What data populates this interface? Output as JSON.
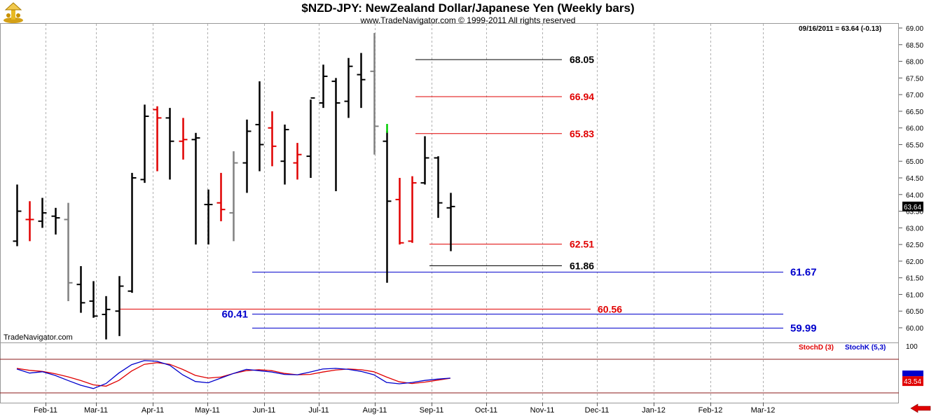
{
  "header": {
    "title": "$NZD-JPY:  NewZealand Dollar/Japanese Yen  (Weekly bars)",
    "subtitle": "www.TradeNavigator.com © 1999-2011 All rights reserved",
    "last_info": "09/16/2011 = 63.64 (-0.13)",
    "watermark": "TradeNavigator.com"
  },
  "colors": {
    "up": "#000000",
    "down": "#e00000",
    "gray": "#808080",
    "green": "#00cc00",
    "fib_black": "#000000",
    "fib_red": "#e00000",
    "fib_blue": "#0000cc",
    "stoch_d": "#e00000",
    "stoch_k": "#0000cc",
    "last_price_bg": "#000000",
    "stoch_last_bg": "#e00000"
  },
  "chart_data": [
    {
      "type": "ohlc",
      "title": "$NZD-JPY:  NewZealand Dollar/Japanese Yen  (Weekly bars)",
      "y_axis_side": "right",
      "ylim": [
        59.7,
        69.1
      ],
      "y_ticks": [
        "69.00",
        "68.50",
        "68.00",
        "67.50",
        "67.00",
        "66.50",
        "66.00",
        "65.50",
        "65.00",
        "64.50",
        "64.00",
        "63.50",
        "63.00",
        "62.50",
        "62.00",
        "61.50",
        "61.00",
        "60.50",
        "60.00"
      ],
      "x_ticks": [
        "Feb-11",
        "Mar-11",
        "Apr-11",
        "May-11",
        "Jun-11",
        "Jul-11",
        "Aug-11",
        "Sep-11",
        "Oct-11",
        "Nov-11",
        "Dec-11",
        "Jan-12",
        "Feb-12",
        "Mar-12"
      ],
      "last_price_label": "63.64",
      "bars": [
        {
          "date": "2011-01-21",
          "o": 62.6,
          "h": 64.3,
          "l": 62.45,
          "c": 63.5,
          "color": "black"
        },
        {
          "date": "2011-01-28",
          "o": 63.25,
          "h": 63.8,
          "l": 62.6,
          "c": 63.25,
          "color": "red"
        },
        {
          "date": "2011-02-04",
          "o": 63.2,
          "h": 63.9,
          "l": 63.0,
          "c": 63.45,
          "color": "black"
        },
        {
          "date": "2011-02-11",
          "o": 63.35,
          "h": 63.6,
          "l": 62.8,
          "c": 63.3,
          "color": "black"
        },
        {
          "date": "2011-02-18",
          "o": 63.25,
          "h": 63.75,
          "l": 60.8,
          "c": 61.35,
          "color": "gray"
        },
        {
          "date": "2011-02-25",
          "o": 61.3,
          "h": 61.85,
          "l": 60.45,
          "c": 60.75,
          "color": "black"
        },
        {
          "date": "2011-03-04",
          "o": 60.8,
          "h": 61.4,
          "l": 60.3,
          "c": 60.35,
          "color": "black"
        },
        {
          "date": "2011-03-11",
          "o": 60.4,
          "h": 60.95,
          "l": 59.65,
          "c": 60.55,
          "color": "black"
        },
        {
          "date": "2011-03-18",
          "o": 60.5,
          "h": 61.55,
          "l": 59.75,
          "c": 61.25,
          "color": "black"
        },
        {
          "date": "2011-03-25",
          "o": 61.1,
          "h": 64.65,
          "l": 61.05,
          "c": 64.5,
          "color": "black"
        },
        {
          "date": "2011-04-01",
          "o": 64.45,
          "h": 66.7,
          "l": 64.35,
          "c": 66.35,
          "color": "black"
        },
        {
          "date": "2011-04-08",
          "o": 66.55,
          "h": 66.65,
          "l": 64.7,
          "c": 66.3,
          "color": "red"
        },
        {
          "date": "2011-04-15",
          "o": 66.3,
          "h": 66.6,
          "l": 64.45,
          "c": 65.6,
          "color": "black"
        },
        {
          "date": "2011-04-22",
          "o": 65.6,
          "h": 66.3,
          "l": 65.05,
          "c": 65.65,
          "color": "red"
        },
        {
          "date": "2011-04-29",
          "o": 65.65,
          "h": 65.85,
          "l": 62.5,
          "c": 65.7,
          "color": "black"
        },
        {
          "date": "2011-05-06",
          "o": 63.7,
          "h": 64.15,
          "l": 62.5,
          "c": 63.7,
          "color": "black"
        },
        {
          "date": "2011-05-13",
          "o": 63.75,
          "h": 64.65,
          "l": 63.2,
          "c": 63.55,
          "color": "red"
        },
        {
          "date": "2011-05-20",
          "o": 63.45,
          "h": 65.3,
          "l": 62.6,
          "c": 64.95,
          "color": "gray"
        },
        {
          "date": "2011-05-27",
          "o": 64.95,
          "h": 66.25,
          "l": 64.05,
          "c": 65.9,
          "color": "black"
        },
        {
          "date": "2011-06-03",
          "o": 66.1,
          "h": 67.4,
          "l": 64.7,
          "c": 65.5,
          "color": "black"
        },
        {
          "date": "2011-06-10",
          "o": 66.0,
          "h": 66.5,
          "l": 64.85,
          "c": 65.45,
          "color": "red"
        },
        {
          "date": "2011-06-17",
          "o": 65.0,
          "h": 66.1,
          "l": 64.3,
          "c": 65.95,
          "color": "black"
        },
        {
          "date": "2011-06-24",
          "o": 64.95,
          "h": 65.55,
          "l": 64.45,
          "c": 65.2,
          "color": "red"
        },
        {
          "date": "2011-07-01",
          "o": 65.15,
          "h": 66.85,
          "l": 64.5,
          "c": 66.9,
          "color": "black"
        },
        {
          "date": "2011-07-08",
          "o": 66.75,
          "h": 67.9,
          "l": 66.6,
          "c": 67.55,
          "color": "black"
        },
        {
          "date": "2011-07-15",
          "o": 67.4,
          "h": 67.5,
          "l": 64.1,
          "c": 66.75,
          "color": "black"
        },
        {
          "date": "2011-07-22",
          "o": 66.8,
          "h": 68.1,
          "l": 66.3,
          "c": 67.85,
          "color": "black"
        },
        {
          "date": "2011-07-29",
          "o": 67.6,
          "h": 68.25,
          "l": 66.6,
          "c": 67.45,
          "color": "black"
        },
        {
          "date": "2011-08-05",
          "o": 67.7,
          "h": 68.85,
          "l": 65.2,
          "c": 66.05,
          "color": "gray"
        },
        {
          "date": "2011-08-12",
          "o": 65.6,
          "h": 65.9,
          "l": 61.35,
          "c": 63.8,
          "color": "black"
        },
        {
          "date": "2011-08-19",
          "o": 63.85,
          "h": 64.5,
          "l": 62.5,
          "c": 62.55,
          "color": "red"
        },
        {
          "date": "2011-08-26",
          "o": 62.6,
          "h": 64.55,
          "l": 62.55,
          "c": 64.35,
          "color": "red"
        },
        {
          "date": "2011-09-02",
          "o": 64.35,
          "h": 65.75,
          "l": 64.3,
          "c": 65.1,
          "color": "black"
        },
        {
          "date": "2011-09-09",
          "o": 65.1,
          "h": 65.15,
          "l": 63.3,
          "c": 63.75,
          "color": "black"
        },
        {
          "date": "2011-09-16",
          "o": 63.6,
          "h": 64.05,
          "l": 62.3,
          "c": 63.64,
          "color": "black"
        }
      ],
      "levels": [
        {
          "label": "68.05",
          "value": 68.05,
          "color": "black"
        },
        {
          "label": "66.94",
          "value": 66.94,
          "color": "red"
        },
        {
          "label": "65.83",
          "value": 65.83,
          "color": "red"
        },
        {
          "label": "62.51",
          "value": 62.51,
          "color": "red"
        },
        {
          "label": "61.86",
          "value": 61.86,
          "color": "black"
        },
        {
          "label": "61.67",
          "value": 61.67,
          "color": "blue"
        },
        {
          "label": "60.56",
          "value": 60.56,
          "color": "red"
        },
        {
          "label": "60.41",
          "value": 60.41,
          "color": "blue"
        },
        {
          "label": "59.99",
          "value": 59.99,
          "color": "blue"
        }
      ]
    },
    {
      "type": "line",
      "ylim": [
        0,
        100
      ],
      "y_ticks": [
        "100"
      ],
      "last_value_label": "43.54",
      "series": [
        {
          "name": "StochD (3)",
          "color": "red",
          "values": [
            73,
            67,
            64,
            57,
            48,
            37,
            24,
            20,
            37,
            65,
            85,
            90,
            85,
            70,
            52,
            44,
            47,
            58,
            66,
            69,
            66,
            58,
            54,
            55,
            62,
            68,
            71,
            69,
            63,
            47,
            33,
            28,
            32,
            38,
            43.54
          ]
        },
        {
          "name": "StochK (5,3)",
          "color": "blue",
          "values": [
            71,
            59,
            63,
            52,
            37,
            23,
            13,
            28,
            59,
            84,
            96,
            94,
            82,
            54,
            34,
            30,
            44,
            58,
            70,
            66,
            62,
            55,
            54,
            62,
            71,
            73,
            70,
            64,
            54,
            31,
            27,
            31,
            37,
            41,
            44
          ]
        }
      ]
    }
  ]
}
